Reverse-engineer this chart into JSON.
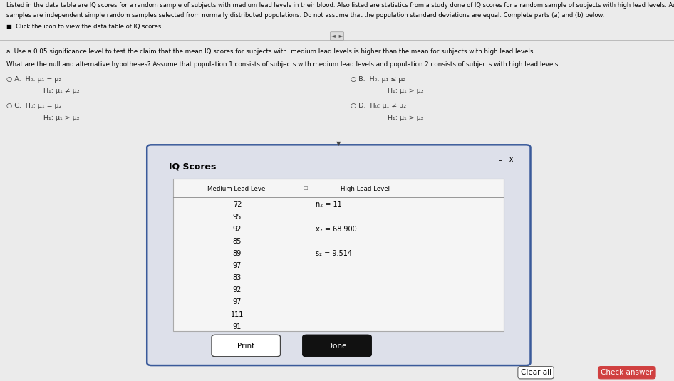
{
  "header_line1": "Listed in the data table are IQ scores for a random sample of subjects with medium lead levels in their blood. Also listed are statistics from a study done of IQ scores for a random sample of subjects with high lead levels. Assume that the two",
  "header_line2": "samples are independent simple random samples selected from normally distributed populations. Do not assume that the population standard deviations are equal. Complete parts (a) and (b) below.",
  "click_text": "■  Click the icon to view the data table of IQ scores.",
  "part_a_label": "a. Use a 0.05 significance level to test the claim that the mean IQ scores for subjects with  medium lead levels is higher than the mean for subjects with high lead levels.",
  "hypothesis_intro": "What are the null and alternative hypotheses? Assume that population 1 consists of subjects with medium lead levels and population 2 consists of subjects with high lead levels.",
  "option_A_h0": "H₀: μ₁ = μ₂",
  "option_A_h1": "H₁: μ₁ ≠ μ₂",
  "option_B_h0": "H₀: μ₁ ≤ μ₂",
  "option_B_h1": "H₁: μ₁ > μ₂",
  "option_C_h0": "H₀: μ₁ = μ₂",
  "option_C_h1": "H₁: μ₁ > μ₂",
  "option_D_h0": "H₀: μ₁ ≠ μ₂",
  "option_D_h1": "H₁: μ₁ > μ₂",
  "dialog_title": "IQ Scores",
  "col1_header": "Medium Lead Level",
  "col2_header": "High Lead Level",
  "col1_values": [
    "72",
    "95",
    "92",
    "85",
    "89",
    "97",
    "83",
    "92",
    "97",
    "111",
    "91"
  ],
  "high_n": "n₂ = 11",
  "high_mean": "ẋ₂ = 68.900",
  "high_s": "s₂ = 9.514",
  "btn_print": "Print",
  "btn_done": "Done",
  "bg_color": "#ebebeb",
  "dialog_bg": "#dde0ea",
  "table_bg": "#f5f5f5"
}
